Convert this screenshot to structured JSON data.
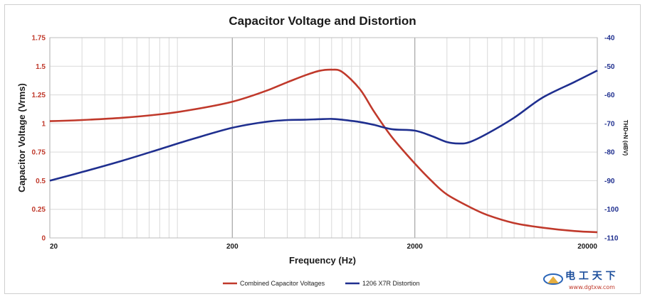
{
  "chart_data": {
    "type": "line",
    "title": "Capacitor Voltage and Distortion",
    "xlabel": "Frequency (Hz)",
    "ylabel_left": "Capacitor Voltage (Vrms)",
    "ylabel_right": "THD+N (dBV)",
    "x_scale": "log",
    "xlim": [
      20,
      20000
    ],
    "x_ticks": [
      "20",
      "200",
      "2000",
      "20000"
    ],
    "ylim_left": [
      0,
      1.75
    ],
    "y_ticks_left": [
      "1.75",
      "1.5",
      "1.25",
      "1",
      "0.75",
      "0.5",
      "0.25",
      "0"
    ],
    "ylim_right": [
      -110,
      -40
    ],
    "y_ticks_right": [
      "-40",
      "-50",
      "-60",
      "-70",
      "-80",
      "-90",
      "-100",
      "-110"
    ],
    "grid": true,
    "legend_position": "bottom",
    "series": [
      {
        "name": "Combined Capacitor Voltages",
        "axis": "left",
        "color": "#c0392b",
        "x": [
          20,
          30,
          50,
          80,
          120,
          200,
          300,
          400,
          500,
          600,
          700,
          800,
          1000,
          1200,
          1500,
          2000,
          2500,
          3000,
          4000,
          5000,
          7000,
          10000,
          15000,
          20000
        ],
        "y": [
          1.02,
          1.03,
          1.05,
          1.08,
          1.12,
          1.19,
          1.28,
          1.36,
          1.42,
          1.46,
          1.47,
          1.45,
          1.3,
          1.1,
          0.88,
          0.65,
          0.49,
          0.38,
          0.27,
          0.2,
          0.13,
          0.09,
          0.06,
          0.05
        ]
      },
      {
        "name": "1206 X7R Distortion",
        "axis": "right",
        "color": "#1f2f8f",
        "x": [
          20,
          30,
          50,
          80,
          120,
          200,
          300,
          400,
          500,
          600,
          700,
          800,
          1000,
          1200,
          1500,
          2000,
          2500,
          3000,
          3500,
          4000,
          5000,
          7000,
          10000,
          15000,
          20000
        ],
        "y": [
          -90,
          -87,
          -83,
          -79,
          -75.5,
          -71.5,
          -69.5,
          -68.8,
          -68.7,
          -68.5,
          -68.4,
          -68.7,
          -69.5,
          -70.5,
          -72,
          -72.5,
          -74.5,
          -76.5,
          -77,
          -76.5,
          -73.5,
          -68,
          -61,
          -55.5,
          -51.5
        ]
      }
    ]
  },
  "watermark": {
    "text": "电 工 天 下",
    "url": "www.dgtxw.com"
  }
}
